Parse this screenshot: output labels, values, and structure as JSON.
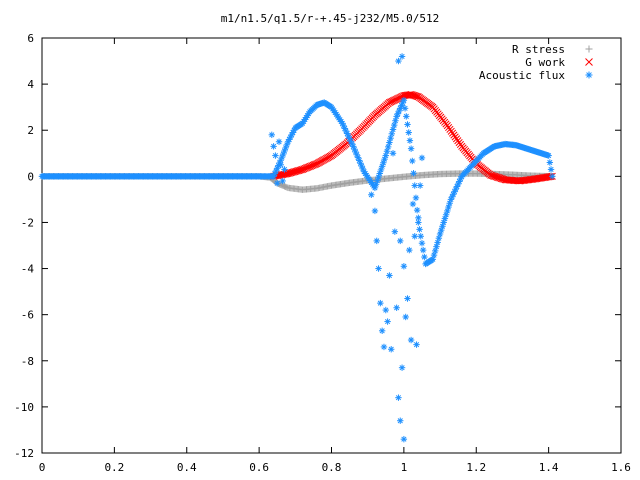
{
  "chart_data": {
    "type": "scatter",
    "title": "m1/n1.5/q1.5/r-+.45-j232/M5.0/512",
    "xlabel": "",
    "ylabel": "",
    "xlim": [
      0,
      1.6
    ],
    "ylim": [
      -12,
      6
    ],
    "x_ticks": [
      "0",
      "0.2",
      "0.4",
      "0.6",
      "0.8",
      "1",
      "1.2",
      "1.4",
      "1.6"
    ],
    "y_ticks": [
      "6",
      "4",
      "2",
      "0",
      "-2",
      "-4",
      "-6",
      "-8",
      "-10",
      "-12"
    ],
    "grid": false,
    "legend_position": "top-right",
    "series": [
      {
        "name": "R stress",
        "marker": "+",
        "color": "#a0a0a0",
        "x": [
          0.0,
          0.2,
          0.4,
          0.6,
          0.63,
          0.65,
          0.68,
          0.72,
          0.76,
          0.8,
          0.85,
          0.9,
          0.95,
          1.0,
          1.05,
          1.1,
          1.15,
          1.2,
          1.25,
          1.3,
          1.35,
          1.41
        ],
        "y": [
          0.0,
          0.0,
          0.0,
          0.0,
          -0.05,
          -0.3,
          -0.5,
          -0.58,
          -0.52,
          -0.4,
          -0.28,
          -0.18,
          -0.1,
          -0.02,
          0.05,
          0.1,
          0.12,
          0.12,
          0.1,
          0.07,
          0.03,
          0.0
        ]
      },
      {
        "name": "G work",
        "marker": "x",
        "color": "#ff0000",
        "x": [
          0.64,
          0.68,
          0.72,
          0.76,
          0.8,
          0.84,
          0.88,
          0.92,
          0.96,
          1.0,
          1.02,
          1.04,
          1.08,
          1.12,
          1.16,
          1.2,
          1.24,
          1.28,
          1.32,
          1.36,
          1.41
        ],
        "y": [
          0.0,
          0.12,
          0.3,
          0.55,
          0.9,
          1.4,
          2.0,
          2.65,
          3.2,
          3.5,
          3.55,
          3.45,
          3.0,
          2.2,
          1.3,
          0.55,
          0.05,
          -0.15,
          -0.2,
          -0.12,
          0.0
        ]
      },
      {
        "name": "Acoustic flux",
        "marker": "*",
        "color": "#1e90ff",
        "x": [
          0.0,
          0.2,
          0.4,
          0.6,
          0.64,
          0.66,
          0.68,
          0.7,
          0.72,
          0.74,
          0.76,
          0.78,
          0.8,
          0.83,
          0.86,
          0.89,
          0.92,
          0.95,
          0.98,
          1.0,
          1.02,
          1.04,
          1.06,
          1.08,
          1.1,
          1.13,
          1.16,
          1.19,
          1.22,
          1.25,
          1.28,
          1.31,
          1.34,
          1.37,
          1.4,
          1.41
        ],
        "y": [
          0.0,
          0.0,
          0.0,
          0.0,
          0.0,
          0.7,
          1.5,
          2.1,
          2.3,
          2.8,
          3.1,
          3.2,
          3.0,
          2.3,
          1.3,
          0.2,
          -0.5,
          0.9,
          2.6,
          3.3,
          1.2,
          -2.0,
          -3.8,
          -3.6,
          -2.5,
          -1.0,
          0.0,
          0.5,
          1.0,
          1.3,
          1.4,
          1.35,
          1.2,
          1.05,
          0.9,
          0.0
        ]
      },
      {
        "name": "",
        "marker": "*",
        "color": "#1e90ff",
        "x": [
          0.635,
          0.64,
          0.645,
          0.65,
          0.655,
          0.66,
          0.665,
          0.67,
          0.91,
          0.92,
          0.925,
          0.93,
          0.935,
          0.94,
          0.945,
          0.95,
          0.955,
          0.96,
          0.965,
          0.97,
          0.975,
          0.98,
          0.985,
          0.99,
          0.995,
          1.0,
          1.005,
          1.01,
          1.015,
          1.02,
          1.025,
          1.03,
          1.035,
          1.04,
          1.045,
          1.05,
          0.985,
          0.995,
          0.99,
          1.0
        ],
        "y": [
          1.8,
          1.3,
          0.9,
          -0.3,
          1.5,
          0.5,
          -0.2,
          0.3,
          -0.8,
          -1.5,
          -2.8,
          -4.0,
          -5.5,
          -6.7,
          -7.4,
          -5.8,
          -6.3,
          -4.3,
          -7.5,
          1.0,
          -2.4,
          -5.7,
          -9.6,
          -2.8,
          -8.3,
          -3.9,
          -6.1,
          -5.3,
          -3.2,
          -7.1,
          -1.2,
          -2.6,
          -7.3,
          -1.8,
          -0.4,
          0.8,
          5.0,
          5.2,
          -10.6,
          -11.4
        ]
      }
    ]
  }
}
